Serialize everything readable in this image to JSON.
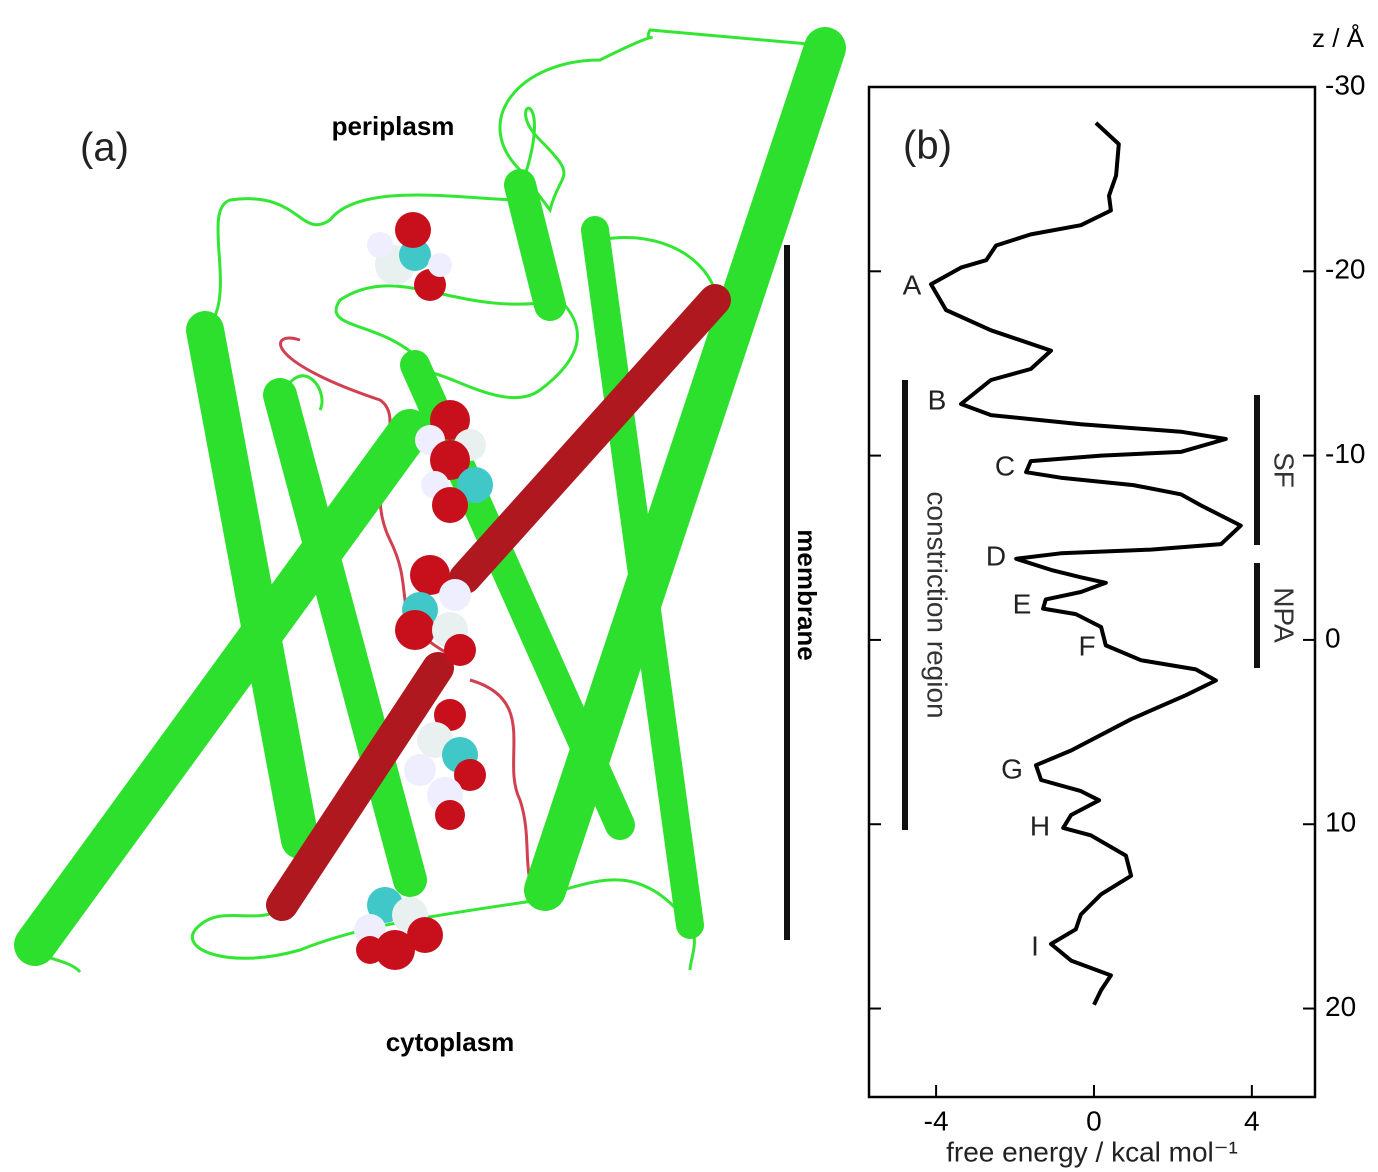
{
  "panel_a": {
    "label": "(a)",
    "top": "periplasm",
    "bottom": "cytoplasm",
    "side": "membrane"
  },
  "chart_data": {
    "type": "line",
    "panel_label": "(b)",
    "xlabel": "free energy  /  kcal mol⁻¹",
    "ylabel": "z / Å",
    "xlim": [
      -5.7,
      5.6
    ],
    "xticks": [
      -4,
      0,
      4
    ],
    "ylim": [
      -30,
      24.8
    ],
    "yticks": [
      -30,
      -20,
      -10,
      0,
      10,
      20
    ],
    "color": "#000000",
    "y": [
      -28.05,
      -26.9,
      -25.2,
      -24.1,
      -23.3,
      -22.5,
      -22.0,
      -21.4,
      -20.6,
      -20.2,
      -19.3,
      -17.9,
      -16.8,
      -15.7,
      -14.7,
      -14.1,
      -12.8,
      -12.2,
      -11.7,
      -11.3,
      -10.9,
      -10.2,
      -10.0,
      -9.7,
      -9.1,
      -8.8,
      -8.4,
      -7.9,
      -7.3,
      -6.2,
      -5.2,
      -4.9,
      -4.7,
      -4.4,
      -3.8,
      -3.4,
      -3.1,
      -2.6,
      -2.2,
      -1.7,
      -1.4,
      -0.7,
      0.3,
      1.1,
      1.6,
      2.2,
      3.0,
      4.3,
      6.0,
      6.8,
      7.6,
      8.2,
      8.7,
      9.5,
      10.2,
      10.6,
      11.7,
      12.8,
      13.8,
      14.9,
      15.7,
      16.5,
      17.4,
      18.2,
      19.0,
      19.8
    ],
    "values": [
      0.05,
      0.63,
      0.56,
      0.38,
      0.43,
      -0.33,
      -1.6,
      -2.48,
      -2.73,
      -3.37,
      -4.13,
      -3.75,
      -2.61,
      -1.09,
      -1.6,
      -2.61,
      -3.37,
      -2.61,
      -0.33,
      2.2,
      3.34,
      2.2,
      0.18,
      -1.6,
      -1.72,
      -0.84,
      1.0,
      2.2,
      2.71,
      3.72,
      3.22,
      1.44,
      -0.84,
      -1.97,
      -1.09,
      -0.33,
      0.3,
      -0.33,
      -1.22,
      -1.29,
      -0.46,
      0.18,
      0.3,
      1.19,
      2.58,
      3.09,
      2.33,
      0.94,
      -0.58,
      -1.47,
      -1.34,
      -0.33,
      0.13,
      -0.58,
      -0.78,
      -0.08,
      0.81,
      0.94,
      0.18,
      -0.33,
      -0.46,
      -1.09,
      -0.58,
      0.43,
      0.18,
      0.0
    ],
    "annotations": [
      "A",
      "B",
      "C",
      "D",
      "E",
      "F",
      "G",
      "H",
      "I"
    ],
    "regions": [
      "constriction region",
      "SF",
      "NPA"
    ]
  }
}
